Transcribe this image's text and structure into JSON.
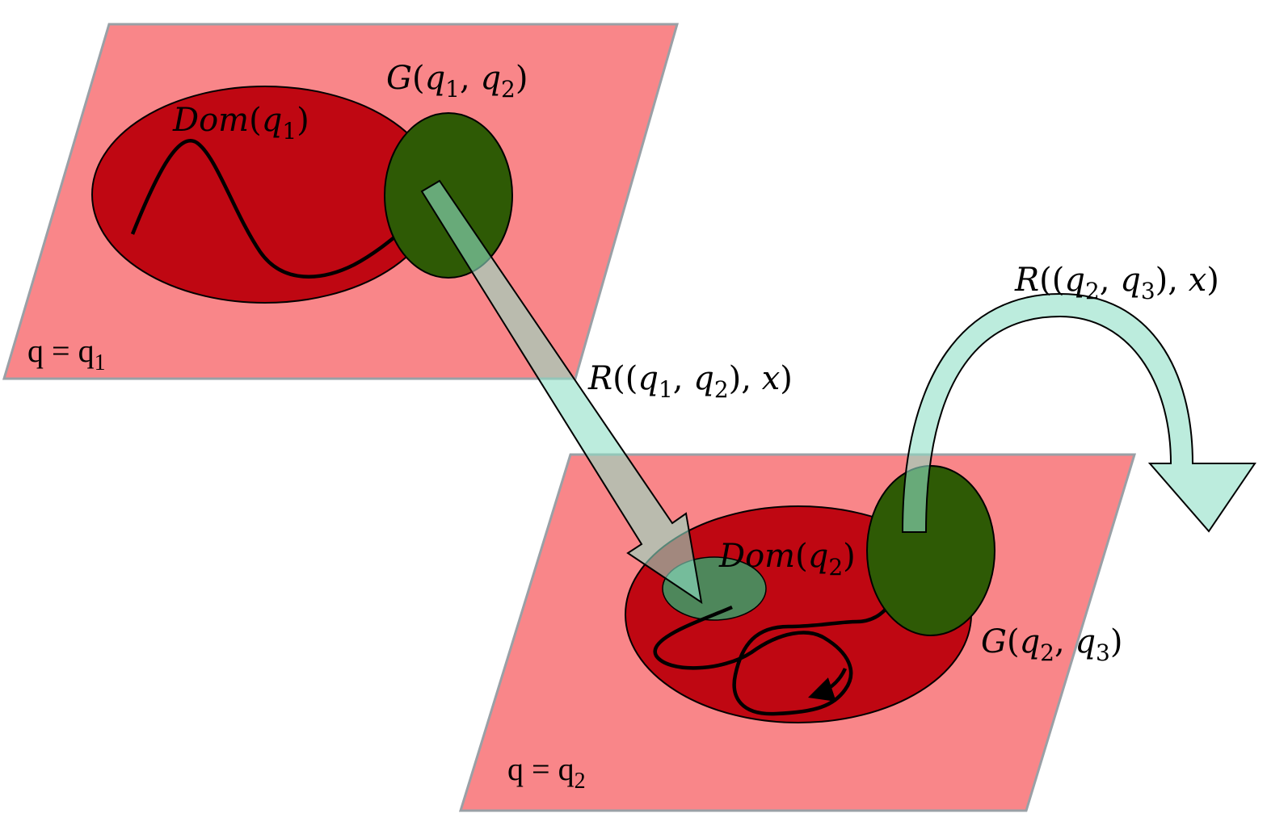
{
  "colors": {
    "plane_fill": "#f98689",
    "plane_stroke": "#9aa0a6",
    "domain_fill": "#bf0712",
    "guard_fill": "#2e5a05",
    "reset_arrow_fill": "#8fe0c6",
    "small_region_fill": "#3a9e68",
    "trajectory": "#000000"
  },
  "modes": [
    {
      "label_q": "q",
      "label_eq": " = ",
      "label_base": "q",
      "label_sub": "1",
      "domain": {
        "name": "Dom",
        "arg_var": "q",
        "arg_sub": "1"
      },
      "guard": {
        "name": "G",
        "from_var": "q",
        "from_sub": "1",
        "to_var": "q",
        "to_sub": "2"
      }
    },
    {
      "label_q": "q",
      "label_eq": " = ",
      "label_base": "q",
      "label_sub": "2",
      "domain": {
        "name": "Dom",
        "arg_var": "q",
        "arg_sub": "2"
      },
      "guard": {
        "name": "G",
        "from_var": "q",
        "from_sub": "2",
        "to_var": "q",
        "to_sub": "3"
      }
    }
  ],
  "resets": [
    {
      "name": "R",
      "from_var": "q",
      "from_sub": "1",
      "to_var": "q",
      "to_sub": "2",
      "state": "x"
    },
    {
      "name": "R",
      "from_var": "q",
      "from_sub": "2",
      "to_var": "q",
      "to_sub": "3",
      "state": "x"
    }
  ],
  "punct": {
    "open": "(",
    "close": ")",
    "comma": ", "
  }
}
